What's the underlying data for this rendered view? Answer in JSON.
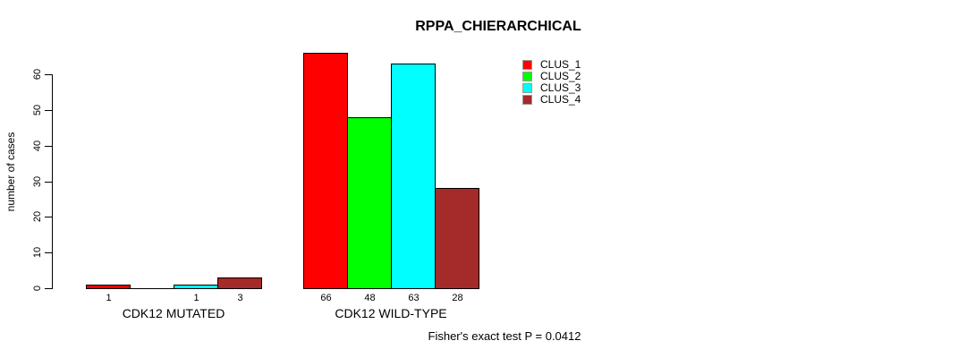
{
  "chart_data": {
    "type": "bar",
    "title": "RPPA_CHIERARCHICAL",
    "ylabel": "number of cases",
    "xlabel": "",
    "annotation": "Fisher's exact test P = 0.0412",
    "ylim": [
      0,
      66
    ],
    "yticks": [
      0,
      10,
      20,
      30,
      40,
      50,
      60
    ],
    "grid": false,
    "legend_position": "top-right",
    "categories": [
      "CDK12 MUTATED",
      "CDK12 WILD-TYPE"
    ],
    "series": [
      {
        "name": "CLUS_1",
        "color": "#FF0000",
        "values": [
          1,
          66
        ]
      },
      {
        "name": "CLUS_2",
        "color": "#00FF00",
        "values": [
          0,
          48
        ]
      },
      {
        "name": "CLUS_3",
        "color": "#00FFFF",
        "values": [
          1,
          63
        ]
      },
      {
        "name": "CLUS_4",
        "color": "#A52A2A",
        "values": [
          3,
          28
        ]
      }
    ],
    "visible_bar_value_labels": [
      "1",
      "1",
      "3",
      "66",
      "48",
      "63",
      "28"
    ]
  }
}
